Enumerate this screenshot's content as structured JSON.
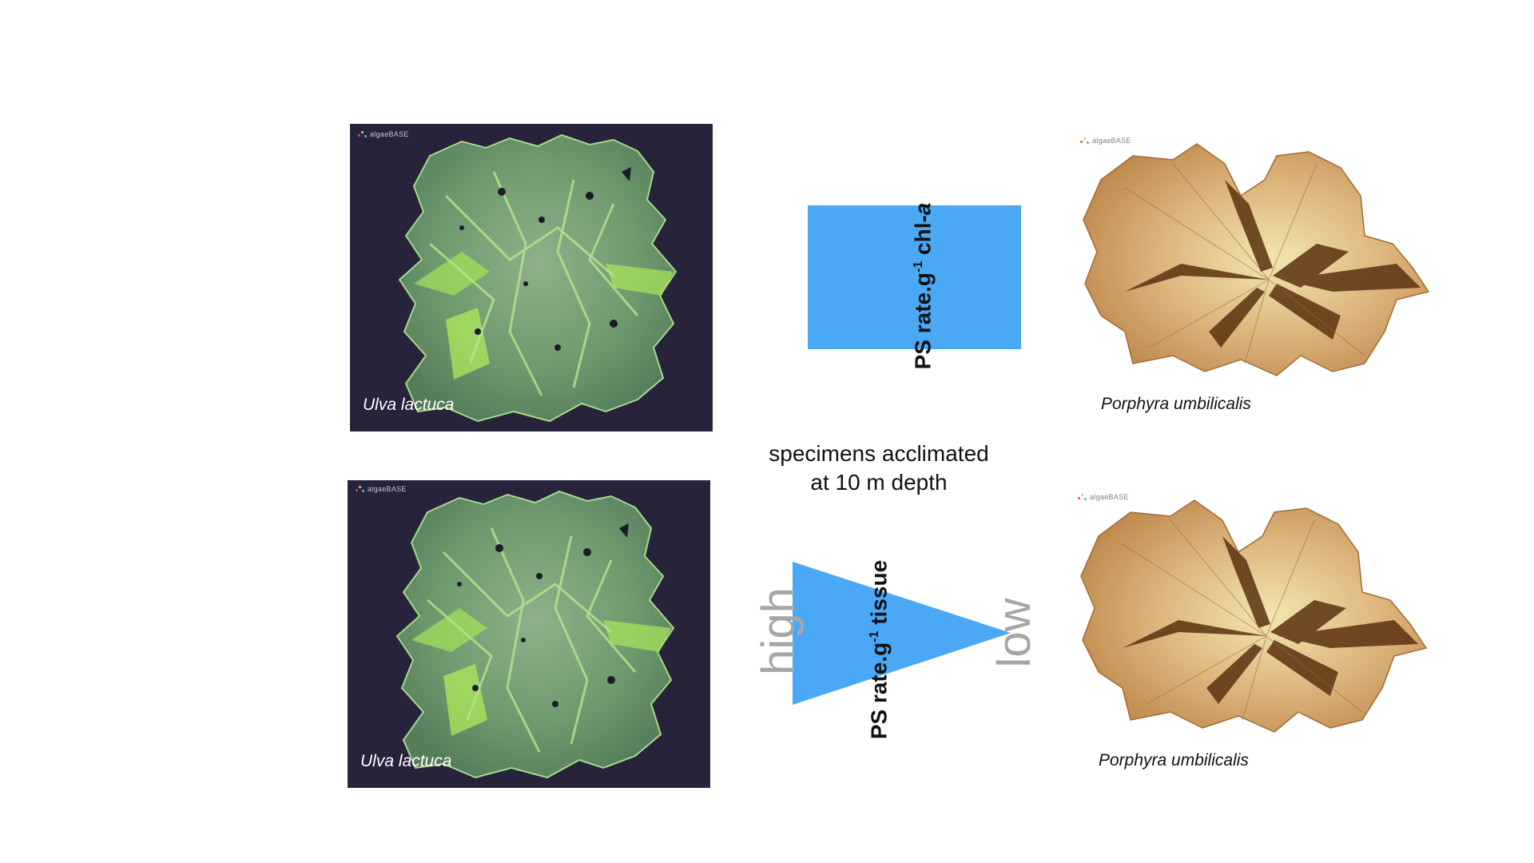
{
  "photos": {
    "top_left": {
      "caption": "Ulva lactuca",
      "watermark": "algaeBASE"
    },
    "bottom_left": {
      "caption": "Ulva lactuca",
      "watermark": "algaeBASE"
    },
    "top_right": {
      "caption": "Porphyra umbilicalis",
      "watermark": "algaeBASE"
    },
    "bottom_right": {
      "caption": "Porphyra umbilicalis",
      "watermark": "algaeBASE"
    }
  },
  "rectangle": {
    "label_prefix": "PS rate.g",
    "label_exponent": "-1",
    "label_suffix": " chl-",
    "label_italic": "a"
  },
  "triangle": {
    "label_prefix": "PS rate.g",
    "label_exponent": "-1",
    "label_suffix": " tissue",
    "high_label": "high",
    "low_label": "low"
  },
  "note": {
    "line1": "specimens acclimated",
    "line2": "at 10 m depth"
  },
  "colors": {
    "shape_blue": "#4ba8f5",
    "ulva_background": "#27233a",
    "ulva_green": "#7fbf5a",
    "porphyra_tan": "#d8b07a",
    "porphyra_dark": "#5a3210",
    "gray_text": "#a6a6a6"
  }
}
